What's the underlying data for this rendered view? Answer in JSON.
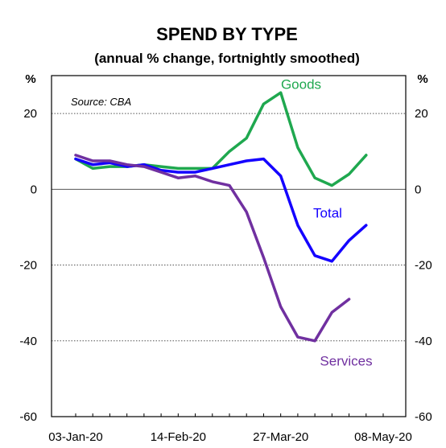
{
  "chart_data": {
    "type": "line",
    "title": "SPEND BY TYPE",
    "subtitle": "(annual % change, fortnightly smoothed)",
    "source": "Source: CBA",
    "y_unit_left": "%",
    "y_unit_right": "%",
    "ylim": [
      -60,
      30
    ],
    "yticks": [
      -60,
      -40,
      -20,
      0,
      20
    ],
    "ytick_labels": [
      "-60",
      "-40",
      "-20",
      "0",
      "20"
    ],
    "x_tick_labels": [
      "03-Jan-20",
      "14-Feb-20",
      "27-Mar-20",
      "08-May-20"
    ],
    "x_dates": [
      "2020-01-03",
      "2020-01-10",
      "2020-01-17",
      "2020-01-24",
      "2020-01-31",
      "2020-02-07",
      "2020-02-14",
      "2020-02-21",
      "2020-02-28",
      "2020-03-06",
      "2020-03-13",
      "2020-03-20",
      "2020-03-27",
      "2020-04-03",
      "2020-04-10",
      "2020-04-17",
      "2020-04-24",
      "2020-05-01",
      "2020-05-08"
    ],
    "grid": "horizontal dotted",
    "series": [
      {
        "name": "Goods",
        "color": "#1fa84f",
        "values": [
          8.0,
          5.5,
          6.0,
          6.0,
          6.5,
          6.0,
          5.5,
          5.5,
          5.5,
          10.0,
          13.5,
          22.5,
          25.5,
          11.0,
          3.0,
          1.0,
          4.0,
          9.0,
          null
        ]
      },
      {
        "name": "Total",
        "color": "#1400ff",
        "values": [
          8.0,
          6.5,
          7.0,
          6.0,
          6.5,
          5.0,
          4.5,
          4.5,
          5.5,
          6.5,
          7.5,
          8.0,
          3.5,
          -9.5,
          -17.5,
          -19.0,
          -13.5,
          -9.5,
          null
        ]
      },
      {
        "name": "Services",
        "color": "#7030a0",
        "values": [
          9.0,
          7.5,
          7.5,
          6.5,
          6.0,
          4.5,
          3.0,
          3.5,
          2.0,
          1.0,
          -6.0,
          -18.0,
          -31.0,
          -39.0,
          -40.0,
          -32.5,
          -29.0,
          null,
          null
        ]
      }
    ]
  }
}
